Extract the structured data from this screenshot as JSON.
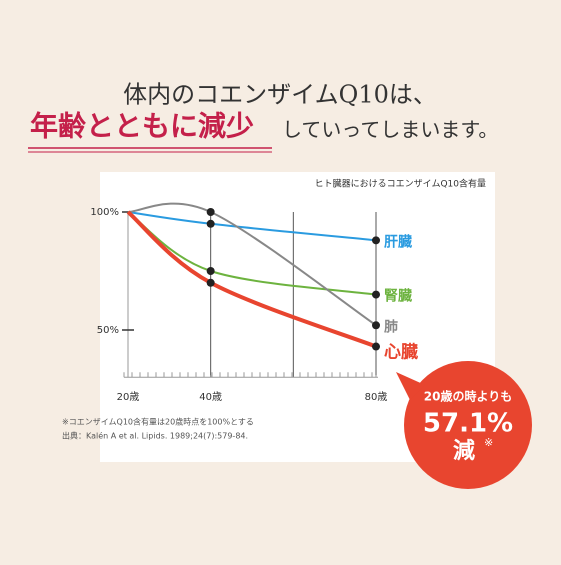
{
  "chart_data": {
    "type": "line",
    "title_lines": [
      "体内のコエンザイムQ10は、",
      "年齢とともに減少",
      "していってしまいます。"
    ],
    "subtitle": "ヒト臓器におけるコエンザイムQ10含有量",
    "x": [
      20,
      40,
      80
    ],
    "series": [
      {
        "name": "肝臓",
        "color": "#2a9be0",
        "values": [
          100,
          95,
          88
        ]
      },
      {
        "name": "腎臓",
        "color": "#6db33f",
        "values": [
          100,
          75,
          65
        ]
      },
      {
        "name": "肺",
        "color": "#888888",
        "values": [
          100,
          100,
          52
        ]
      },
      {
        "name": "心臓",
        "color": "#e8452f",
        "values": [
          100,
          70,
          43
        ]
      }
    ],
    "xlim": [
      20,
      80
    ],
    "xticks": [
      {
        "value": 20,
        "label": "20歳"
      },
      {
        "value": 40,
        "label": "40歳"
      },
      {
        "value": 80,
        "label": "80歳"
      }
    ],
    "xgrid": [
      40,
      60,
      80
    ],
    "ylim": [
      30,
      105
    ],
    "yticks": [
      {
        "value": 100,
        "label": "100%"
      },
      {
        "value": 50,
        "label": "50%"
      }
    ],
    "notes": [
      "※コエンザイムQ10含有量は20歳時点を100%とする",
      "出典：Kalén A et al. Lipids. 1989;24(7):579-84."
    ],
    "callout": {
      "line1": "20歳の時よりも",
      "value": 57.1,
      "value_label": "57.1%",
      "line3": "減",
      "mark": "※"
    }
  }
}
